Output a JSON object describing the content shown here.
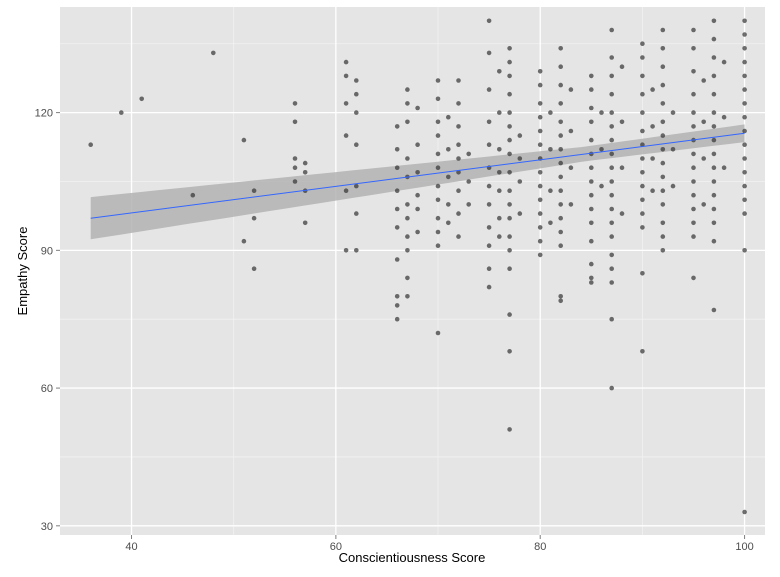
{
  "chart_data": {
    "type": "scatter",
    "title": "",
    "xlabel": "Conscientiousness Score",
    "ylabel": "Empathy Score",
    "xlim": [
      33,
      102
    ],
    "ylim": [
      28,
      143
    ],
    "x_ticks": [
      40,
      60,
      80,
      100
    ],
    "y_ticks": [
      30,
      60,
      90,
      120
    ],
    "x_minor": [
      30,
      50,
      70,
      90
    ],
    "y_minor": [
      45,
      75,
      105,
      135
    ],
    "grid": true,
    "legend": "none",
    "colors": {
      "panel": "#e5e5e5",
      "grid_major": "#ffffff",
      "grid_minor": "#f2f2f2",
      "points": "#333333",
      "fit_line": "#3366ff",
      "ribbon": "#b3b3b3"
    },
    "trend": {
      "method": "lm",
      "x": [
        36,
        100
      ],
      "y": [
        97,
        115.5
      ],
      "ci_halfwidth": [
        4.6,
        2.6
      ]
    },
    "points": [
      [
        36,
        113
      ],
      [
        39,
        120
      ],
      [
        41,
        123
      ],
      [
        46,
        102
      ],
      [
        48,
        133
      ],
      [
        51,
        114
      ],
      [
        51,
        92
      ],
      [
        52,
        103
      ],
      [
        52,
        97
      ],
      [
        52,
        86
      ],
      [
        56,
        122
      ],
      [
        56,
        118
      ],
      [
        56,
        110
      ],
      [
        56,
        108
      ],
      [
        56,
        105
      ],
      [
        57,
        109
      ],
      [
        57,
        107
      ],
      [
        57,
        96
      ],
      [
        57,
        103
      ],
      [
        61,
        131
      ],
      [
        61,
        128
      ],
      [
        61,
        122
      ],
      [
        61,
        115
      ],
      [
        61,
        103
      ],
      [
        61,
        90
      ],
      [
        62,
        127
      ],
      [
        62,
        124
      ],
      [
        62,
        120
      ],
      [
        62,
        113
      ],
      [
        62,
        104
      ],
      [
        62,
        98
      ],
      [
        62,
        90
      ],
      [
        66,
        117
      ],
      [
        66,
        112
      ],
      [
        66,
        108
      ],
      [
        66,
        103
      ],
      [
        66,
        99
      ],
      [
        66,
        95
      ],
      [
        66,
        88
      ],
      [
        66,
        80
      ],
      [
        66,
        78
      ],
      [
        66,
        75
      ],
      [
        67,
        125
      ],
      [
        67,
        122
      ],
      [
        67,
        118
      ],
      [
        67,
        110
      ],
      [
        67,
        106
      ],
      [
        67,
        100
      ],
      [
        67,
        97
      ],
      [
        67,
        93
      ],
      [
        67,
        90
      ],
      [
        67,
        84
      ],
      [
        67,
        80
      ],
      [
        68,
        121
      ],
      [
        68,
        113
      ],
      [
        68,
        107
      ],
      [
        68,
        102
      ],
      [
        68,
        99
      ],
      [
        68,
        94
      ],
      [
        70,
        127
      ],
      [
        70,
        123
      ],
      [
        70,
        118
      ],
      [
        70,
        115
      ],
      [
        70,
        111
      ],
      [
        70,
        108
      ],
      [
        70,
        104
      ],
      [
        70,
        101
      ],
      [
        70,
        97
      ],
      [
        70,
        94
      ],
      [
        70,
        91
      ],
      [
        70,
        72
      ],
      [
        71,
        119
      ],
      [
        71,
        112
      ],
      [
        71,
        106
      ],
      [
        71,
        100
      ],
      [
        71,
        96
      ],
      [
        72,
        127
      ],
      [
        72,
        122
      ],
      [
        72,
        117
      ],
      [
        72,
        113
      ],
      [
        72,
        110
      ],
      [
        72,
        107
      ],
      [
        72,
        103
      ],
      [
        72,
        98
      ],
      [
        72,
        93
      ],
      [
        73,
        111
      ],
      [
        73,
        105
      ],
      [
        73,
        100
      ],
      [
        75,
        140
      ],
      [
        75,
        133
      ],
      [
        75,
        125
      ],
      [
        75,
        118
      ],
      [
        75,
        113
      ],
      [
        75,
        108
      ],
      [
        75,
        104
      ],
      [
        75,
        100
      ],
      [
        75,
        95
      ],
      [
        75,
        91
      ],
      [
        75,
        86
      ],
      [
        75,
        82
      ],
      [
        76,
        129
      ],
      [
        76,
        120
      ],
      [
        76,
        112
      ],
      [
        76,
        107
      ],
      [
        76,
        103
      ],
      [
        76,
        97
      ],
      [
        76,
        93
      ],
      [
        77,
        134
      ],
      [
        77,
        131
      ],
      [
        77,
        128
      ],
      [
        77,
        124
      ],
      [
        77,
        120
      ],
      [
        77,
        117
      ],
      [
        77,
        114
      ],
      [
        77,
        111
      ],
      [
        77,
        107
      ],
      [
        77,
        103
      ],
      [
        77,
        100
      ],
      [
        77,
        97
      ],
      [
        77,
        93
      ],
      [
        77,
        90
      ],
      [
        77,
        86
      ],
      [
        77,
        76
      ],
      [
        77,
        68
      ],
      [
        77,
        51
      ],
      [
        78,
        115
      ],
      [
        78,
        110
      ],
      [
        78,
        105
      ],
      [
        78,
        98
      ],
      [
        80,
        129
      ],
      [
        80,
        126
      ],
      [
        80,
        122
      ],
      [
        80,
        119
      ],
      [
        80,
        116
      ],
      [
        80,
        113
      ],
      [
        80,
        110
      ],
      [
        80,
        107
      ],
      [
        80,
        104
      ],
      [
        80,
        101
      ],
      [
        80,
        98
      ],
      [
        80,
        95
      ],
      [
        80,
        92
      ],
      [
        80,
        89
      ],
      [
        81,
        120
      ],
      [
        81,
        112
      ],
      [
        81,
        103
      ],
      [
        81,
        96
      ],
      [
        82,
        134
      ],
      [
        82,
        130
      ],
      [
        82,
        126
      ],
      [
        82,
        122
      ],
      [
        82,
        118
      ],
      [
        82,
        115
      ],
      [
        82,
        112
      ],
      [
        82,
        109
      ],
      [
        82,
        106
      ],
      [
        82,
        103
      ],
      [
        82,
        100
      ],
      [
        82,
        97
      ],
      [
        82,
        94
      ],
      [
        82,
        91
      ],
      [
        82,
        80
      ],
      [
        82,
        79
      ],
      [
        83,
        125
      ],
      [
        83,
        116
      ],
      [
        83,
        108
      ],
      [
        83,
        100
      ],
      [
        85,
        128
      ],
      [
        85,
        125
      ],
      [
        85,
        121
      ],
      [
        85,
        118
      ],
      [
        85,
        114
      ],
      [
        85,
        111
      ],
      [
        85,
        108
      ],
      [
        85,
        105
      ],
      [
        85,
        102
      ],
      [
        85,
        99
      ],
      [
        85,
        96
      ],
      [
        85,
        92
      ],
      [
        85,
        87
      ],
      [
        85,
        84
      ],
      [
        85,
        83
      ],
      [
        86,
        120
      ],
      [
        86,
        112
      ],
      [
        86,
        104
      ],
      [
        87,
        138
      ],
      [
        87,
        132
      ],
      [
        87,
        128
      ],
      [
        87,
        124
      ],
      [
        87,
        120
      ],
      [
        87,
        117
      ],
      [
        87,
        114
      ],
      [
        87,
        111
      ],
      [
        87,
        108
      ],
      [
        87,
        105
      ],
      [
        87,
        102
      ],
      [
        87,
        99
      ],
      [
        87,
        96
      ],
      [
        87,
        93
      ],
      [
        87,
        89
      ],
      [
        87,
        86
      ],
      [
        87,
        83
      ],
      [
        87,
        75
      ],
      [
        87,
        60
      ],
      [
        88,
        130
      ],
      [
        88,
        118
      ],
      [
        88,
        108
      ],
      [
        88,
        98
      ],
      [
        90,
        135
      ],
      [
        90,
        132
      ],
      [
        90,
        128
      ],
      [
        90,
        124
      ],
      [
        90,
        120
      ],
      [
        90,
        116
      ],
      [
        90,
        113
      ],
      [
        90,
        110
      ],
      [
        90,
        107
      ],
      [
        90,
        104
      ],
      [
        90,
        101
      ],
      [
        90,
        98
      ],
      [
        90,
        95
      ],
      [
        90,
        85
      ],
      [
        90,
        68
      ],
      [
        91,
        125
      ],
      [
        91,
        117
      ],
      [
        91,
        110
      ],
      [
        91,
        103
      ],
      [
        92,
        138
      ],
      [
        92,
        134
      ],
      [
        92,
        130
      ],
      [
        92,
        126
      ],
      [
        92,
        122
      ],
      [
        92,
        118
      ],
      [
        92,
        115
      ],
      [
        92,
        112
      ],
      [
        92,
        109
      ],
      [
        92,
        106
      ],
      [
        92,
        103
      ],
      [
        92,
        100
      ],
      [
        92,
        96
      ],
      [
        92,
        93
      ],
      [
        92,
        90
      ],
      [
        93,
        120
      ],
      [
        93,
        112
      ],
      [
        93,
        104
      ],
      [
        95,
        138
      ],
      [
        95,
        134
      ],
      [
        95,
        129
      ],
      [
        95,
        124
      ],
      [
        95,
        120
      ],
      [
        95,
        117
      ],
      [
        95,
        114
      ],
      [
        95,
        111
      ],
      [
        95,
        108
      ],
      [
        95,
        105
      ],
      [
        95,
        102
      ],
      [
        95,
        99
      ],
      [
        95,
        96
      ],
      [
        95,
        93
      ],
      [
        95,
        84
      ],
      [
        96,
        127
      ],
      [
        96,
        118
      ],
      [
        96,
        110
      ],
      [
        96,
        100
      ],
      [
        97,
        140
      ],
      [
        97,
        136
      ],
      [
        97,
        132
      ],
      [
        97,
        128
      ],
      [
        97,
        124
      ],
      [
        97,
        120
      ],
      [
        97,
        117
      ],
      [
        97,
        114
      ],
      [
        97,
        111
      ],
      [
        97,
        108
      ],
      [
        97,
        105
      ],
      [
        97,
        102
      ],
      [
        97,
        99
      ],
      [
        97,
        96
      ],
      [
        97,
        92
      ],
      [
        97,
        77
      ],
      [
        98,
        131
      ],
      [
        98,
        119
      ],
      [
        98,
        108
      ],
      [
        100,
        140
      ],
      [
        100,
        137
      ],
      [
        100,
        134
      ],
      [
        100,
        131
      ],
      [
        100,
        128
      ],
      [
        100,
        125
      ],
      [
        100,
        122
      ],
      [
        100,
        119
      ],
      [
        100,
        116
      ],
      [
        100,
        113
      ],
      [
        100,
        110
      ],
      [
        100,
        107
      ],
      [
        100,
        104
      ],
      [
        100,
        101
      ],
      [
        100,
        98
      ],
      [
        100,
        90
      ],
      [
        100,
        33
      ]
    ]
  }
}
